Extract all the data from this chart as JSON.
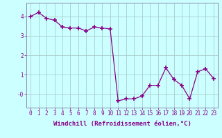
{
  "x": [
    0,
    1,
    2,
    3,
    4,
    5,
    6,
    7,
    8,
    9,
    10,
    11,
    12,
    13,
    14,
    15,
    16,
    17,
    18,
    19,
    20,
    21,
    22,
    23
  ],
  "y": [
    4.0,
    4.2,
    3.9,
    3.8,
    3.45,
    3.4,
    3.4,
    3.25,
    3.45,
    3.4,
    3.35,
    -0.35,
    -0.25,
    -0.25,
    -0.1,
    0.45,
    0.45,
    1.35,
    0.75,
    0.45,
    -0.25,
    1.15,
    1.3,
    0.8
  ],
  "line_color": "#880088",
  "marker": "+",
  "marker_size": 5,
  "marker_linewidth": 1.2,
  "background_color": "#ccffff",
  "grid_color": "#aacccc",
  "xlabel": "Windchill (Refroidissement éolien,°C)",
  "xlabel_fontsize": 6.5,
  "yticklabels": [
    "-0",
    "1",
    "2",
    "3",
    "4"
  ],
  "ytick_vals": [
    0,
    1,
    2,
    3,
    4
  ],
  "xtick_labels": [
    "0",
    "1",
    "2",
    "3",
    "4",
    "5",
    "6",
    "7",
    "8",
    "9",
    "10",
    "11",
    "12",
    "13",
    "14",
    "15",
    "16",
    "17",
    "18",
    "19",
    "20",
    "21",
    "22",
    "23"
  ],
  "ylim": [
    -0.7,
    4.7
  ],
  "xlim": [
    -0.5,
    23.5
  ],
  "tick_fontsize": 5.5
}
